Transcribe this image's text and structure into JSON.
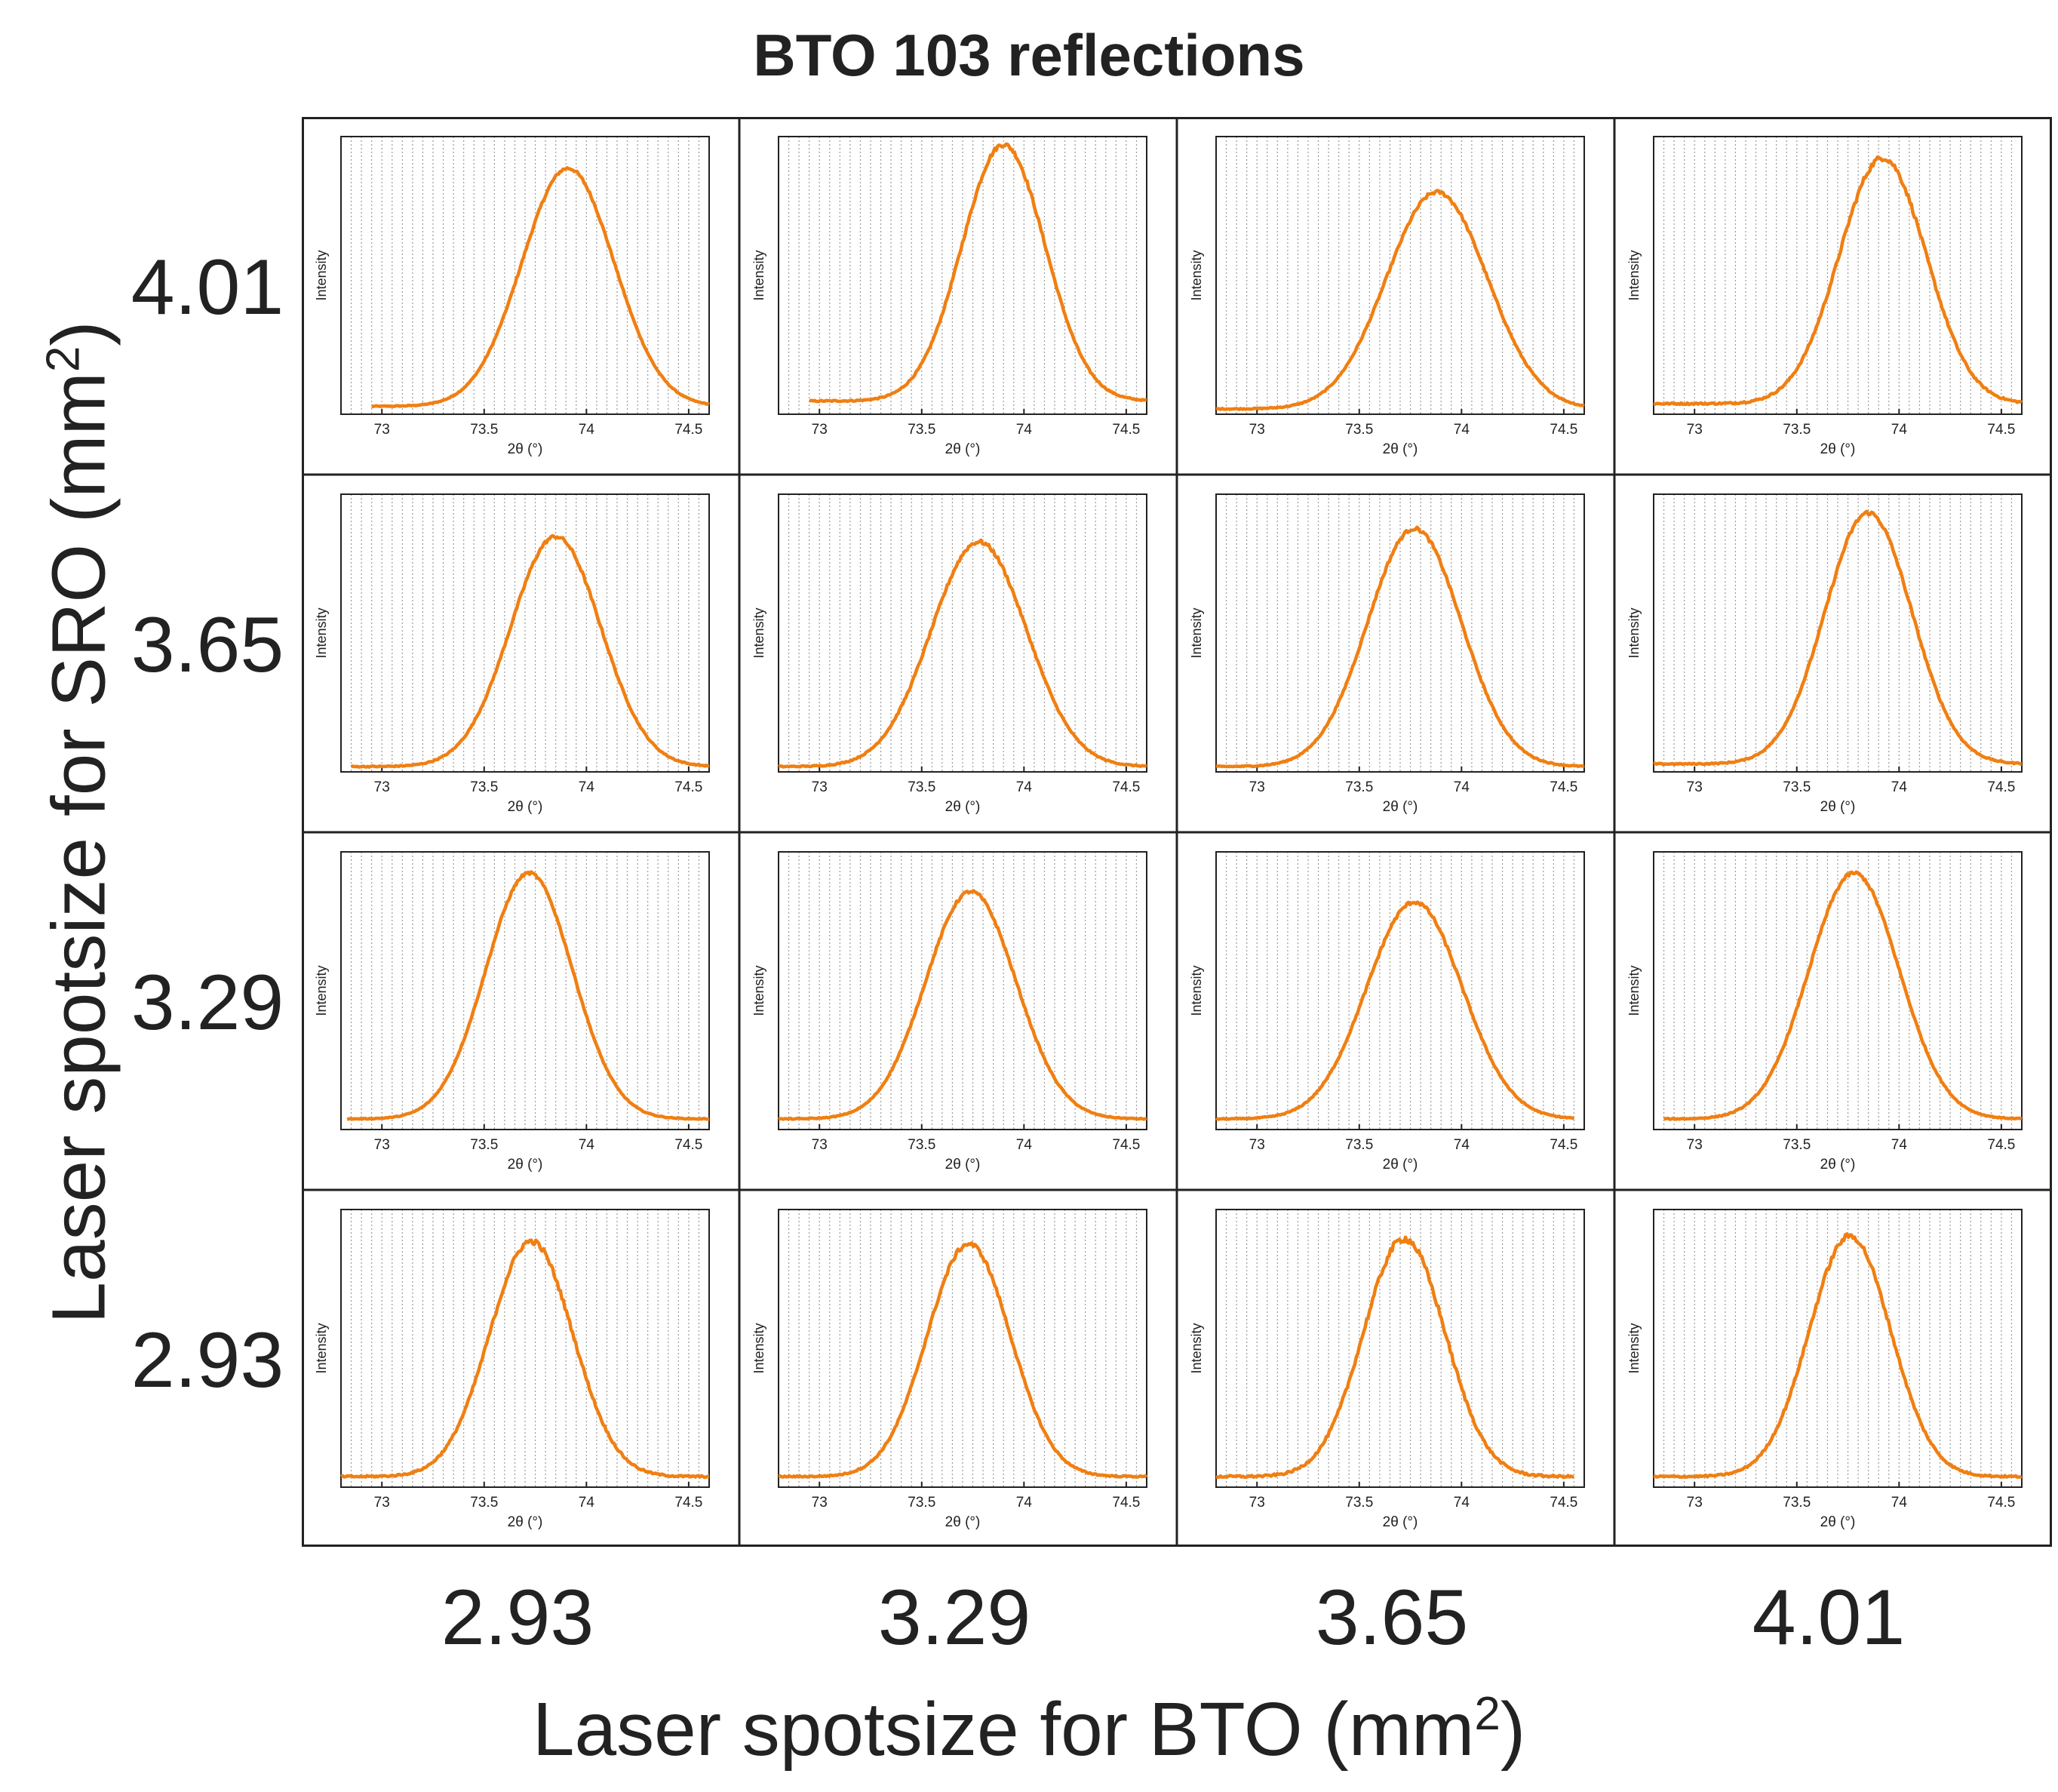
{
  "title": "BTO 103 reflections",
  "xlabel": {
    "text": "Laser spotsize for BTO (mm",
    "sup": "2",
    "close": ")"
  },
  "ylabel": {
    "text": "Laser spotsize for SRO (mm",
    "sup": "2",
    "close": ")"
  },
  "columns": [
    "2.93",
    "3.29",
    "3.65",
    "4.01"
  ],
  "rows": [
    "4.01",
    "3.65",
    "3.29",
    "2.93"
  ],
  "colors": {
    "line": "#F07F12",
    "grid": "#9a9a9a",
    "frame": "#222222"
  },
  "chart_data": {
    "type": "line",
    "title": "BTO 103 reflections",
    "subplot_xlabel": "2θ (°)",
    "subplot_ylabel": "Intensity",
    "xlim": [
      72.8,
      74.6
    ],
    "xticks": [
      73,
      73.5,
      74,
      74.5
    ],
    "xtick_labels": [
      "73",
      "73.5",
      "74",
      "74.5"
    ],
    "ylim": [
      0,
      1.05
    ],
    "grid": "vertical dotted every 0.05°",
    "panels": [
      {
        "row": "4.01",
        "col": "2.93",
        "x_start": 72.95,
        "x_end": 74.6,
        "peak_center": 73.91,
        "fwhm": 0.53,
        "peak_height": 0.9,
        "baseline": 0.03,
        "noise": 0.008
      },
      {
        "row": "4.01",
        "col": "3.29",
        "x_start": 72.95,
        "x_end": 74.6,
        "peak_center": 73.9,
        "fwhm": 0.48,
        "peak_height": 0.97,
        "baseline": 0.05,
        "noise": 0.012
      },
      {
        "row": "4.01",
        "col": "3.65",
        "x_start": 72.8,
        "x_end": 74.6,
        "peak_center": 73.88,
        "fwhm": 0.58,
        "peak_height": 0.82,
        "baseline": 0.02,
        "noise": 0.01
      },
      {
        "row": "4.01",
        "col": "4.01",
        "x_start": 72.8,
        "x_end": 74.6,
        "peak_center": 73.92,
        "fwhm": 0.5,
        "peak_height": 0.93,
        "baseline": 0.04,
        "noise": 0.016
      },
      {
        "row": "3.65",
        "col": "2.93",
        "x_start": 72.85,
        "x_end": 74.6,
        "peak_center": 73.85,
        "fwhm": 0.52,
        "peak_height": 0.87,
        "baseline": 0.02,
        "noise": 0.01
      },
      {
        "row": "3.65",
        "col": "3.29",
        "x_start": 72.8,
        "x_end": 74.6,
        "peak_center": 73.78,
        "fwhm": 0.55,
        "peak_height": 0.85,
        "baseline": 0.02,
        "noise": 0.011
      },
      {
        "row": "3.65",
        "col": "3.65",
        "x_start": 72.8,
        "x_end": 74.6,
        "peak_center": 73.77,
        "fwhm": 0.54,
        "peak_height": 0.9,
        "baseline": 0.02,
        "noise": 0.01
      },
      {
        "row": "3.65",
        "col": "4.01",
        "x_start": 72.8,
        "x_end": 74.6,
        "peak_center": 73.85,
        "fwhm": 0.5,
        "peak_height": 0.95,
        "baseline": 0.03,
        "noise": 0.012
      },
      {
        "row": "3.29",
        "col": "2.93",
        "x_start": 72.83,
        "x_end": 74.6,
        "peak_center": 73.72,
        "fwhm": 0.5,
        "peak_height": 0.93,
        "baseline": 0.04,
        "noise": 0.008
      },
      {
        "row": "3.29",
        "col": "3.29",
        "x_start": 72.8,
        "x_end": 74.6,
        "peak_center": 73.74,
        "fwhm": 0.52,
        "peak_height": 0.86,
        "baseline": 0.04,
        "noise": 0.009
      },
      {
        "row": "3.29",
        "col": "3.65",
        "x_start": 72.8,
        "x_end": 74.55,
        "peak_center": 73.77,
        "fwhm": 0.55,
        "peak_height": 0.82,
        "baseline": 0.04,
        "noise": 0.01
      },
      {
        "row": "3.29",
        "col": "4.01",
        "x_start": 72.85,
        "x_end": 74.6,
        "peak_center": 73.78,
        "fwhm": 0.52,
        "peak_height": 0.93,
        "baseline": 0.04,
        "noise": 0.01
      },
      {
        "row": "2.93",
        "col": "2.93",
        "x_start": 72.8,
        "x_end": 74.6,
        "peak_center": 73.73,
        "fwhm": 0.48,
        "peak_height": 0.89,
        "baseline": 0.04,
        "noise": 0.016
      },
      {
        "row": "2.93",
        "col": "3.29",
        "x_start": 72.8,
        "x_end": 74.6,
        "peak_center": 73.73,
        "fwhm": 0.48,
        "peak_height": 0.88,
        "baseline": 0.04,
        "noise": 0.013
      },
      {
        "row": "2.93",
        "col": "3.65",
        "x_start": 72.8,
        "x_end": 74.55,
        "peak_center": 73.72,
        "fwhm": 0.47,
        "peak_height": 0.9,
        "baseline": 0.04,
        "noise": 0.02
      },
      {
        "row": "2.93",
        "col": "4.01",
        "x_start": 72.8,
        "x_end": 74.6,
        "peak_center": 73.76,
        "fwhm": 0.47,
        "peak_height": 0.91,
        "baseline": 0.04,
        "noise": 0.016
      }
    ]
  }
}
